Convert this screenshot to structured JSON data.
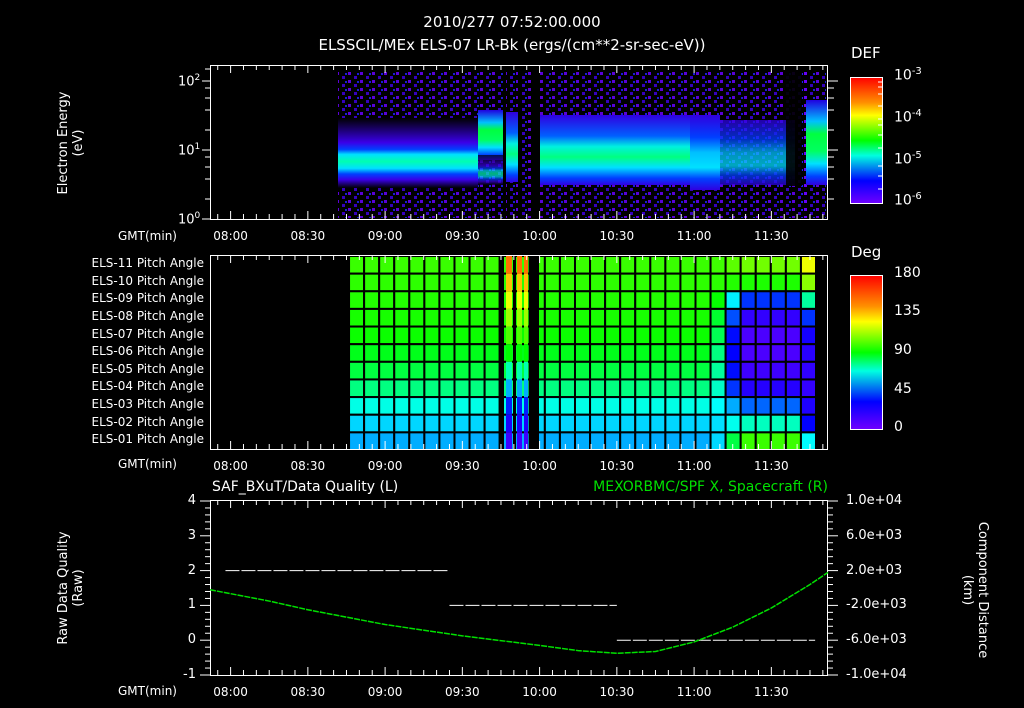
{
  "header": {
    "timestamp": "2010/277 07:52:00.000",
    "subtitle": "ELSSCIL/MEx ELS-07 LR-Bk  (ergs/(cm**2-sr-sec-eV))"
  },
  "time_axis": {
    "label": "GMT(min)",
    "ticks": [
      "08:00",
      "08:30",
      "09:00",
      "09:30",
      "10:00",
      "10:30",
      "11:00",
      "11:30"
    ],
    "start": "07:52",
    "end": "11:52"
  },
  "panel1": {
    "ylabel_line1": "Electron Energy",
    "ylabel_line2": "(eV)",
    "yticks": [
      {
        "base": "10",
        "exp": "2"
      },
      {
        "base": "10",
        "exp": "1"
      },
      {
        "base": "10",
        "exp": "0"
      }
    ],
    "colorbar": {
      "title": "DEF",
      "ticks": [
        {
          "base": "10",
          "exp": "-3"
        },
        {
          "base": "10",
          "exp": "-4"
        },
        {
          "base": "10",
          "exp": "-5"
        },
        {
          "base": "10",
          "exp": "-6"
        }
      ]
    }
  },
  "panel2": {
    "rows": [
      "ELS-11 Pitch Angle",
      "ELS-10 Pitch Angle",
      "ELS-09 Pitch Angle",
      "ELS-08 Pitch Angle",
      "ELS-07 Pitch Angle",
      "ELS-06 Pitch Angle",
      "ELS-05 Pitch Angle",
      "ELS-04 Pitch Angle",
      "ELS-03 Pitch Angle",
      "ELS-02 Pitch Angle",
      "ELS-01 Pitch Angle"
    ],
    "colorbar": {
      "title": "Deg",
      "ticks": [
        "180",
        "135",
        "90",
        "45",
        "0"
      ]
    }
  },
  "panel3": {
    "left_title": "SAF_BXuT/Data Quality (L)",
    "right_title": "MEXORBMC/SPF X, Spacecraft (R)",
    "right_title_color": "#00e000",
    "ylabel_left_line1": "Raw Data Quality",
    "ylabel_left_line2": "(Raw)",
    "yticks_left": [
      "4",
      "3",
      "2",
      "1",
      "0",
      "-1"
    ],
    "ylabel_right_line1": "Component Distance",
    "ylabel_right_line2": "(km)",
    "yticks_right": [
      "1.0e+04",
      "6.0e+03",
      "2.0e+03",
      "-2.0e+03",
      "-6.0e+03",
      "-1.0e+04"
    ]
  },
  "chart_data": [
    {
      "type": "heatmap",
      "title": "ELSSCIL/MEx ELS-07 LR-Bk (ergs/(cm**2-sr-sec-eV))",
      "xlabel": "GMT(min)",
      "ylabel": "Electron Energy (eV)",
      "yscale": "log",
      "ylim": [
        1,
        200
      ],
      "x_ticks": [
        "08:00",
        "08:30",
        "09:00",
        "09:30",
        "10:00",
        "10:30",
        "11:00",
        "11:30"
      ],
      "colorbar": {
        "label": "DEF",
        "scale": "log",
        "range": [
          1e-06,
          0.001
        ]
      },
      "features": [
        {
          "time_range": [
            "07:52",
            "08:46"
          ],
          "description": "no data"
        },
        {
          "time_range": [
            "08:46",
            "09:40"
          ],
          "energy_band_eV": [
            4,
            15
          ],
          "peak_DEF": 3e-05
        },
        {
          "time_range": [
            "09:40",
            "09:52"
          ],
          "energy_band_eV": [
            8,
            30
          ],
          "peak_DEF": 0.0001
        },
        {
          "time_range": [
            "09:52",
            "10:01"
          ],
          "description": "data gaps"
        },
        {
          "time_range": [
            "10:01",
            "10:58"
          ],
          "energy_band_eV": [
            5,
            20
          ],
          "peak_DEF": 8e-05
        },
        {
          "time_range": [
            "10:58",
            "11:40"
          ],
          "energy_band_eV": [
            3,
            20
          ],
          "peak_DEF": 2e-05
        },
        {
          "time_range": [
            "11:40",
            "11:43"
          ],
          "description": "data gap"
        },
        {
          "time_range": [
            "11:43",
            "11:52"
          ],
          "energy_band_eV": [
            4,
            40
          ],
          "peak_DEF": 8e-05
        }
      ]
    },
    {
      "type": "heatmap",
      "title": "ELS Pitch Angle",
      "xlabel": "GMT(min)",
      "y_categories": [
        "ELS-11",
        "ELS-10",
        "ELS-09",
        "ELS-08",
        "ELS-07",
        "ELS-06",
        "ELS-05",
        "ELS-04",
        "ELS-03",
        "ELS-02",
        "ELS-01"
      ],
      "colorbar": {
        "label": "Deg",
        "range": [
          0,
          180
        ]
      },
      "features": [
        {
          "time_range": [
            "07:52",
            "08:46"
          ],
          "description": "no data"
        },
        {
          "time_range": [
            "08:46",
            "11:10"
          ],
          "values_deg_top_to_bottom": [
            100,
            98,
            96,
            94,
            92,
            88,
            85,
            80,
            72,
            66,
            62
          ]
        },
        {
          "time_range": [
            "09:52",
            "10:01"
          ],
          "description": "narrow stripes, 150 deg top to 20 deg bottom, gaps"
        },
        {
          "time_range": [
            "11:15",
            "11:45"
          ],
          "values_deg_top_to_bottom": [
            110,
            95,
            50,
            25,
            15,
            15,
            20,
            30,
            55,
            75,
            100
          ]
        },
        {
          "time_range": [
            "11:45",
            "11:52"
          ],
          "values_deg_top_to_bottom": [
            150,
            130,
            100,
            70,
            55,
            40,
            30,
            20,
            15,
            20,
            45
          ]
        }
      ]
    },
    {
      "type": "line",
      "title_left": "SAF_BXuT/Data Quality (L)",
      "title_right": "MEXORBMC/SPF X, Spacecraft (R)",
      "xlabel": "GMT(min)",
      "ylabel_left": "Raw Data Quality (Raw)",
      "ylabel_right": "Component Distance (km)",
      "ylim_left": [
        -1,
        4
      ],
      "ylim_right": [
        -10000,
        10000
      ],
      "series": [
        {
          "name": "Data Quality",
          "axis": "left",
          "color": "#ffffff",
          "style": "dashed",
          "points": [
            [
              "07:58",
              2
            ],
            [
              "09:25",
              2
            ],
            [
              "09:25",
              1
            ],
            [
              "10:30",
              1
            ],
            [
              "10:30",
              0
            ],
            [
              "11:47",
              0
            ]
          ]
        },
        {
          "name": "SPF X Spacecraft",
          "axis": "right",
          "color": "#00e000",
          "x": [
            "07:52",
            "08:15",
            "08:30",
            "09:00",
            "09:30",
            "10:00",
            "10:15",
            "10:30",
            "10:45",
            "11:00",
            "11:15",
            "11:30",
            "11:45",
            "11:52"
          ],
          "values": [
            -200,
            -1500,
            -2500,
            -4200,
            -5500,
            -6600,
            -7200,
            -7500,
            -7300,
            -6200,
            -4500,
            -2300,
            400,
            1800
          ]
        }
      ]
    }
  ]
}
